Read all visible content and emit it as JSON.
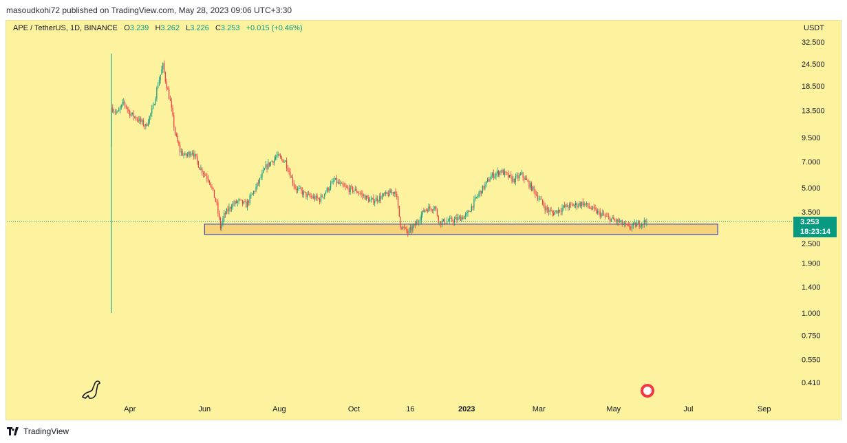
{
  "header": {
    "published": "masoudkohi72 published on TradingView.com, May 28, 2023 09:06 UTC+3:30"
  },
  "legend": {
    "symbol": "APE / TetherUS, 1D, BINANCE",
    "o_label": "O",
    "o": "3.239",
    "h_label": "H",
    "h": "3.262",
    "l_label": "L",
    "l": "3.226",
    "c_label": "C",
    "c": "3.253",
    "change": "+0.015 (+0.46%)"
  },
  "price_label": {
    "price": "3.253",
    "countdown": "18:23:14"
  },
  "footer": {
    "brand": "TradingView"
  },
  "colors": {
    "up": "#089981",
    "down": "#f23645",
    "background": "#fdf29e",
    "zone_fill": "#f6d27a",
    "zone_border": "#1e2fb5"
  },
  "chart_data": {
    "type": "candlestick",
    "title": "APE / TetherUS, 1D, BINANCE",
    "y_unit": "USDT",
    "y_scale": "log",
    "ylim": [
      0.37,
      37
    ],
    "y_ticks": [
      "32.500",
      "24.500",
      "18.500",
      "13.500",
      "9.500",
      "7.000",
      "5.000",
      "3.500",
      "2.500",
      "1.900",
      "1.400",
      "1.000",
      "0.750",
      "0.550",
      "0.410"
    ],
    "x_ticks": [
      {
        "label": "Apr",
        "day": 15
      },
      {
        "label": "Jun",
        "day": 76
      },
      {
        "label": "Aug",
        "day": 137
      },
      {
        "label": "Oct",
        "day": 198
      },
      {
        "label": "16",
        "day": 244
      },
      {
        "label": "2023",
        "day": 290
      },
      {
        "label": "Mar",
        "day": 349
      },
      {
        "label": "May",
        "day": 410
      },
      {
        "label": "Jul",
        "day": 471
      },
      {
        "label": "Sep",
        "day": 533
      }
    ],
    "start_date": "2022-03-17",
    "close_waypoints": [
      [
        0,
        14
      ],
      [
        5,
        13
      ],
      [
        10,
        15
      ],
      [
        15,
        13
      ],
      [
        22,
        12
      ],
      [
        28,
        11
      ],
      [
        34,
        14
      ],
      [
        38,
        19
      ],
      [
        42,
        24
      ],
      [
        44,
        20
      ],
      [
        48,
        15
      ],
      [
        52,
        10
      ],
      [
        56,
        8
      ],
      [
        60,
        7.5
      ],
      [
        66,
        8
      ],
      [
        72,
        6.5
      ],
      [
        80,
        5.5
      ],
      [
        86,
        4
      ],
      [
        89,
        3
      ],
      [
        92,
        3.5
      ],
      [
        98,
        4
      ],
      [
        104,
        4.2
      ],
      [
        110,
        4
      ],
      [
        118,
        5
      ],
      [
        126,
        6.5
      ],
      [
        135,
        7.5
      ],
      [
        142,
        7
      ],
      [
        150,
        5
      ],
      [
        160,
        4.5
      ],
      [
        170,
        4.3
      ],
      [
        182,
        5.5
      ],
      [
        190,
        5
      ],
      [
        200,
        4.8
      ],
      [
        212,
        4.2
      ],
      [
        222,
        4.5
      ],
      [
        232,
        4.8
      ],
      [
        236,
        3.1
      ],
      [
        242,
        2.8
      ],
      [
        248,
        3.1
      ],
      [
        256,
        3.8
      ],
      [
        264,
        3.9
      ],
      [
        268,
        3.2
      ],
      [
        280,
        3.3
      ],
      [
        290,
        3.5
      ],
      [
        298,
        4.4
      ],
      [
        310,
        5.8
      ],
      [
        318,
        6.2
      ],
      [
        328,
        5.5
      ],
      [
        335,
        5.9
      ],
      [
        345,
        4.8
      ],
      [
        355,
        3.8
      ],
      [
        360,
        3.6
      ],
      [
        370,
        3.9
      ],
      [
        385,
        4.1
      ],
      [
        395,
        3.7
      ],
      [
        405,
        3.4
      ],
      [
        415,
        3.2
      ],
      [
        422,
        3.0
      ],
      [
        428,
        3.1
      ],
      [
        437,
        3.253
      ]
    ],
    "launch_candle": {
      "day": 0,
      "open": 8.5,
      "high": 28,
      "low": 1.0,
      "close": 14
    },
    "current_price": 3.253,
    "support_zone": {
      "low": 2.74,
      "high": 3.13,
      "start_day": 76,
      "end_day": 495
    }
  }
}
